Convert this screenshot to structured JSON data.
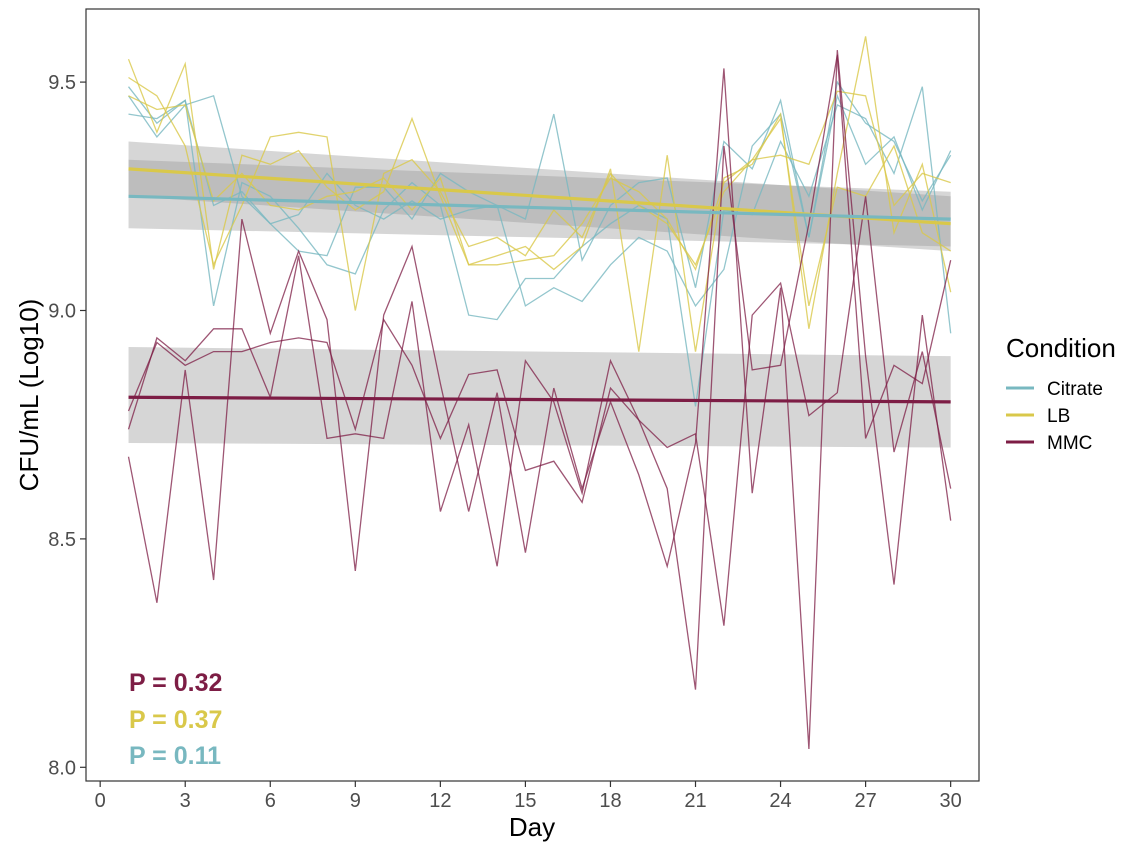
{
  "chart_data": {
    "type": "line",
    "title": "",
    "xlabel": "Day",
    "ylabel": "CFU/mL (Log10)",
    "xlim": [
      -0.5,
      31
    ],
    "ylim": [
      7.97,
      9.66
    ],
    "x_ticks": [
      0,
      3,
      6,
      9,
      12,
      15,
      18,
      21,
      24,
      27,
      30
    ],
    "x_tick_labels": [
      "0",
      "3",
      "6",
      "9",
      "12",
      "15",
      "18",
      "21",
      "24",
      "27",
      "30"
    ],
    "y_ticks": [
      8.0,
      8.5,
      9.0,
      9.5
    ],
    "y_tick_labels": [
      "8.0",
      "8.5",
      "9.0",
      "9.5"
    ],
    "grid": false,
    "legend": {
      "title": "Condition",
      "placement": "right",
      "entries": [
        {
          "label": "Citrate",
          "color": "#78b8c0"
        },
        {
          "label": "LB",
          "color": "#d9c84a"
        },
        {
          "label": "MMC",
          "color": "#7d1d45"
        }
      ]
    },
    "x": [
      1,
      2,
      3,
      4,
      5,
      6,
      7,
      8,
      9,
      10,
      11,
      12,
      13,
      14,
      15,
      16,
      17,
      18,
      19,
      20,
      21,
      22,
      23,
      24,
      25,
      26,
      27,
      28,
      29,
      30
    ],
    "series": [
      {
        "name": "Citrate",
        "color": "#78b8c0",
        "kind": "replicate",
        "values": [
          9.49,
          9.41,
          9.46,
          9.23,
          9.26,
          9.19,
          9.21,
          9.3,
          9.23,
          9.2,
          9.24,
          9.2,
          9.22,
          9.23,
          9.2,
          9.43,
          9.11,
          9.23,
          9.28,
          9.29,
          9.05,
          9.37,
          9.31,
          9.46,
          9.16,
          9.47,
          9.32,
          9.38,
          9.22,
          9.35
        ]
      },
      {
        "name": "Citrate",
        "color": "#78b8c0",
        "kind": "replicate",
        "values": [
          9.43,
          9.42,
          9.46,
          9.01,
          9.28,
          9.25,
          9.18,
          9.1,
          9.08,
          9.22,
          9.28,
          9.23,
          8.99,
          8.98,
          9.07,
          9.07,
          9.14,
          9.19,
          9.23,
          9.2,
          8.79,
          9.22,
          9.21,
          9.37,
          9.25,
          9.45,
          9.42,
          9.3,
          9.49,
          8.95
        ]
      },
      {
        "name": "Citrate",
        "color": "#78b8c0",
        "kind": "replicate",
        "values": [
          9.47,
          9.38,
          9.45,
          9.47,
          9.25,
          9.19,
          9.13,
          9.12,
          9.27,
          9.27,
          9.2,
          9.3,
          9.26,
          9.23,
          9.01,
          9.05,
          9.02,
          9.1,
          9.16,
          9.13,
          9.01,
          9.09,
          9.36,
          9.43,
          9.16,
          9.5,
          9.41,
          9.37,
          9.24,
          9.34
        ]
      },
      {
        "name": "LB",
        "color": "#d9c84a",
        "kind": "replicate",
        "values": [
          9.55,
          9.39,
          9.54,
          9.09,
          9.34,
          9.32,
          9.35,
          9.27,
          9.22,
          9.26,
          9.42,
          9.25,
          9.1,
          9.12,
          9.14,
          9.09,
          9.14,
          9.31,
          8.91,
          9.34,
          8.91,
          9.29,
          9.32,
          9.43,
          8.96,
          9.3,
          9.6,
          9.17,
          9.32,
          9.04
        ]
      },
      {
        "name": "LB",
        "color": "#d9c84a",
        "kind": "replicate",
        "values": [
          9.51,
          9.47,
          9.36,
          9.1,
          9.23,
          9.38,
          9.39,
          9.38,
          9.0,
          9.3,
          9.33,
          9.26,
          9.14,
          9.16,
          9.12,
          9.22,
          9.16,
          9.3,
          9.23,
          9.19,
          9.1,
          9.26,
          9.33,
          9.34,
          9.32,
          9.48,
          9.47,
          9.23,
          9.3,
          9.28
        ]
      },
      {
        "name": "LB",
        "color": "#d9c84a",
        "kind": "replicate",
        "values": [
          9.47,
          9.44,
          9.45,
          9.24,
          9.3,
          9.23,
          9.22,
          9.25,
          9.26,
          9.29,
          9.22,
          9.29,
          9.1,
          9.1,
          9.11,
          9.12,
          9.19,
          9.29,
          9.26,
          9.2,
          9.09,
          9.28,
          9.33,
          9.42,
          9.01,
          9.27,
          9.25,
          9.36,
          9.17,
          9.13
        ]
      },
      {
        "name": "MMC",
        "color": "#7d1d45",
        "kind": "replicate",
        "values": [
          8.68,
          8.36,
          8.87,
          8.41,
          9.2,
          8.95,
          9.13,
          8.98,
          8.43,
          8.99,
          9.14,
          8.84,
          8.56,
          8.82,
          8.47,
          8.83,
          8.61,
          8.8,
          8.64,
          8.44,
          8.71,
          9.53,
          8.6,
          9.05,
          8.04,
          9.57,
          8.9,
          8.4,
          8.99,
          8.54
        ]
      },
      {
        "name": "MMC",
        "color": "#7d1d45",
        "kind": "replicate",
        "values": [
          8.74,
          8.94,
          8.89,
          8.96,
          8.96,
          8.81,
          9.12,
          8.72,
          8.73,
          8.72,
          9.02,
          8.56,
          8.75,
          8.44,
          8.89,
          8.8,
          8.6,
          8.89,
          8.76,
          8.61,
          8.17,
          9.36,
          8.87,
          8.88,
          9.19,
          9.56,
          8.72,
          8.88,
          8.84,
          9.11
        ]
      },
      {
        "name": "MMC",
        "color": "#7d1d45",
        "kind": "replicate",
        "values": [
          8.78,
          8.93,
          8.88,
          8.91,
          8.91,
          8.93,
          8.94,
          8.93,
          8.74,
          8.98,
          8.88,
          8.72,
          8.86,
          8.87,
          8.65,
          8.67,
          8.58,
          8.83,
          8.76,
          8.7,
          8.73,
          8.31,
          8.99,
          9.06,
          8.77,
          8.82,
          9.25,
          8.69,
          8.91,
          8.61
        ]
      }
    ],
    "trend_lines": [
      {
        "name": "LB",
        "color": "#d9c84a",
        "x": [
          1,
          30
        ],
        "y": [
          9.31,
          9.19
        ],
        "ci_lower": [
          9.25,
          9.13
        ],
        "ci_upper": [
          9.37,
          9.25
        ]
      },
      {
        "name": "Citrate",
        "color": "#78b8c0",
        "x": [
          1,
          30
        ],
        "y": [
          9.25,
          9.2
        ],
        "ci_lower": [
          9.18,
          9.14
        ],
        "ci_upper": [
          9.33,
          9.26
        ]
      },
      {
        "name": "MMC",
        "color": "#7d1d45",
        "x": [
          1,
          30
        ],
        "y": [
          8.81,
          8.8
        ],
        "ci_lower": [
          8.71,
          8.7
        ],
        "ci_upper": [
          8.92,
          8.9
        ]
      }
    ],
    "annotations": [
      {
        "text": "P = 0.32",
        "color": "#7d1d45"
      },
      {
        "text": "P = 0.37",
        "color": "#d9c84a"
      },
      {
        "text": "P = 0.11",
        "color": "#78b8c0"
      }
    ]
  }
}
